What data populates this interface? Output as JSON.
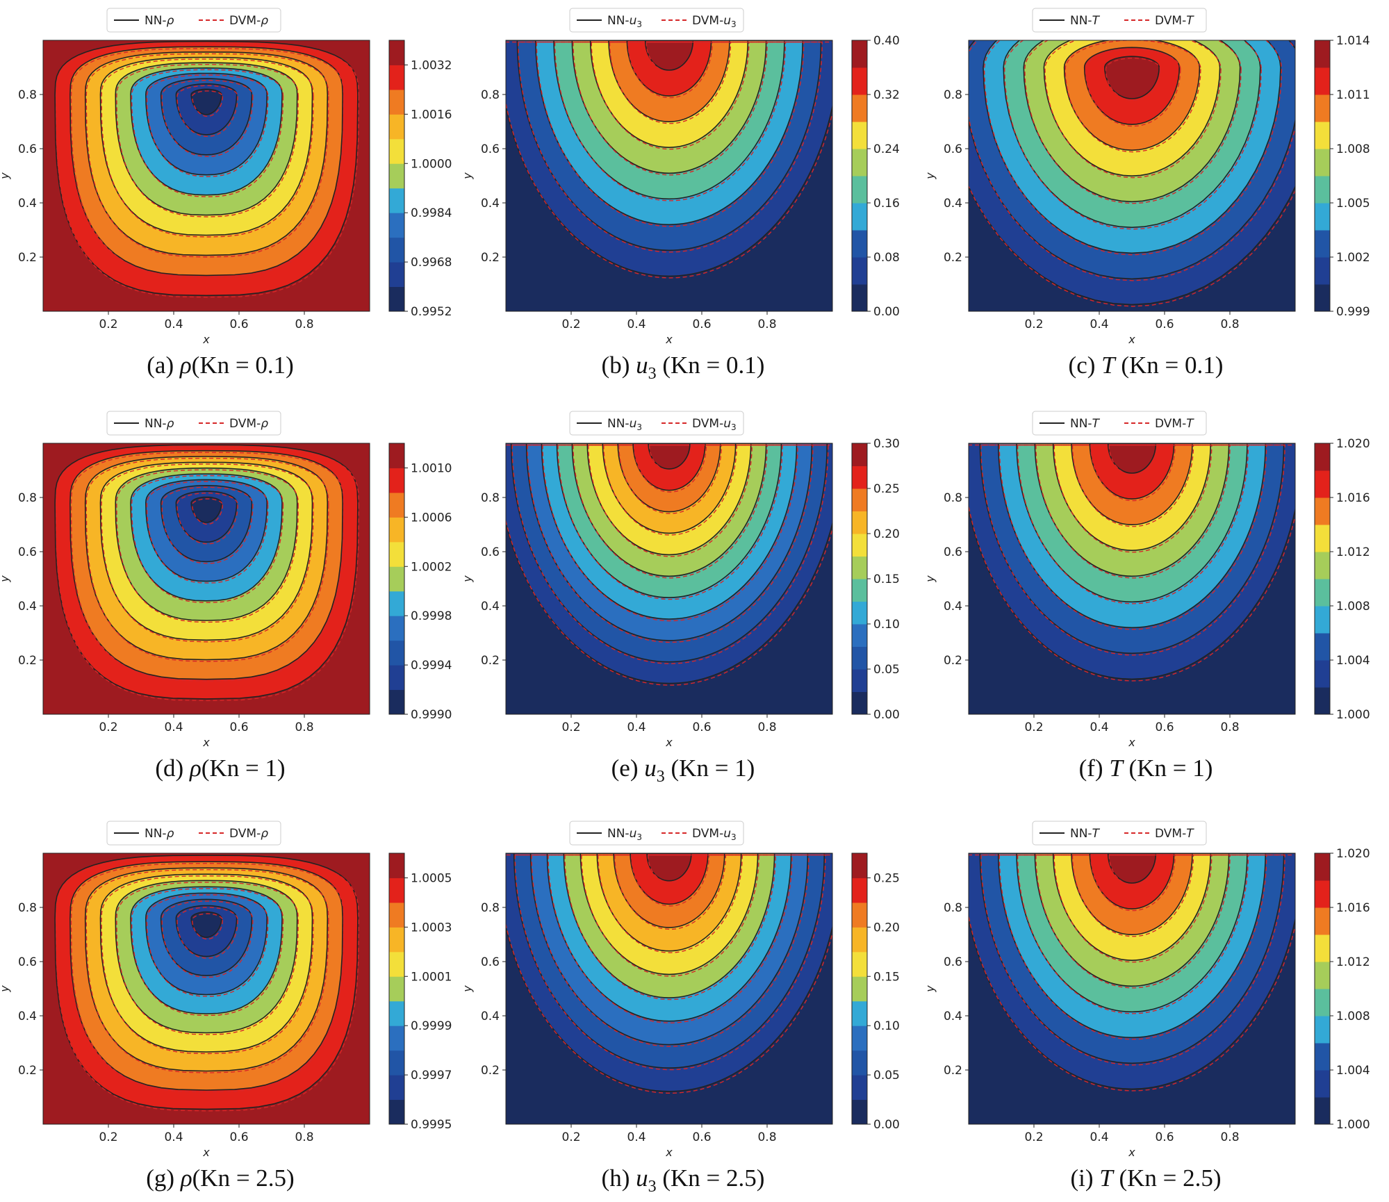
{
  "legend_labels": {
    "nn_prefix": "NN-",
    "dvm_prefix": "DVM-"
  },
  "colormap": [
    "#1a2c5e",
    "#203f93",
    "#2155a6",
    "#2b6fbf",
    "#33a9d6",
    "#5bbf9d",
    "#a6cd5a",
    "#f3df3a",
    "#f7b526",
    "#ef7b22",
    "#e3221b",
    "#9e1b20"
  ],
  "chart_data": [
    {
      "id": "a",
      "type": "contour",
      "variable": "ρ",
      "var_plain": "ρ",
      "var_sub": "",
      "kn": "0.1",
      "caption": "(a) ρ(Kn = 0.1)",
      "caption_prefix": "(a) ",
      "caption_suffix": "(Kn = 0.1)",
      "legend": [
        "NN-ρ",
        "DVM-ρ"
      ],
      "xlabel": "x",
      "ylabel": "y",
      "xticks": [
        "0.2",
        "0.4",
        "0.6",
        "0.8"
      ],
      "yticks": [
        "0.2",
        "0.4",
        "0.6",
        "0.8"
      ],
      "colorbar_min": 0.9952,
      "colorbar_max": 1.004,
      "colorbar_ticks": [
        "1.0032",
        "1.0016",
        "1.0000",
        "0.9984",
        "0.9968",
        "0.9952"
      ],
      "colorbar_levels": 11,
      "field_pattern": "vortex",
      "center_x": 0.5,
      "center_y": 0.8,
      "levels": 10
    },
    {
      "id": "b",
      "type": "contour",
      "variable": "u3",
      "var_plain": "u",
      "var_sub": "3",
      "kn": "0.1",
      "caption": "(b) u3 (Kn = 0.1)",
      "caption_prefix": "(b) ",
      "caption_suffix": " (Kn = 0.1)",
      "legend": [
        "NN-u3",
        "DVM-u3"
      ],
      "xlabel": "x",
      "ylabel": "y",
      "xticks": [
        "0.2",
        "0.4",
        "0.6",
        "0.8"
      ],
      "yticks": [
        "0.2",
        "0.4",
        "0.6",
        "0.8"
      ],
      "colorbar_min": 0.0,
      "colorbar_max": 0.4,
      "colorbar_ticks": [
        "0.40",
        "0.32",
        "0.24",
        "0.16",
        "0.08",
        "0.00"
      ],
      "colorbar_levels": 10,
      "field_pattern": "lid",
      "center_x": 0.5,
      "center_y": 1.0,
      "levels": 9
    },
    {
      "id": "c",
      "type": "contour",
      "variable": "T",
      "var_plain": "T",
      "var_sub": "",
      "kn": "0.1",
      "caption": "(c) T (Kn = 0.1)",
      "caption_prefix": "(c) ",
      "caption_suffix": " (Kn = 0.1)",
      "legend": [
        "NN-T",
        "DVM-T"
      ],
      "xlabel": "x",
      "ylabel": "y",
      "xticks": [
        "0.2",
        "0.4",
        "0.6",
        "0.8"
      ],
      "yticks": [
        "0.2",
        "0.4",
        "0.6",
        "0.8"
      ],
      "colorbar_min": 0.999,
      "colorbar_max": 1.014,
      "colorbar_ticks": [
        "1.014",
        "1.011",
        "1.008",
        "1.005",
        "1.002",
        "0.999"
      ],
      "colorbar_levels": 10,
      "field_pattern": "hot",
      "center_x": 0.5,
      "center_y": 0.9,
      "levels": 9
    },
    {
      "id": "d",
      "type": "contour",
      "variable": "ρ",
      "var_plain": "ρ",
      "var_sub": "",
      "kn": "1",
      "caption": "(d) ρ(Kn = 1)",
      "caption_prefix": "(d) ",
      "caption_suffix": "(Kn = 1)",
      "legend": [
        "NN-ρ",
        "DVM-ρ"
      ],
      "xlabel": "x",
      "ylabel": "y",
      "xticks": [
        "0.2",
        "0.4",
        "0.6",
        "0.8"
      ],
      "yticks": [
        "0.2",
        "0.4",
        "0.6",
        "0.8"
      ],
      "colorbar_min": 0.999,
      "colorbar_max": 1.0012,
      "colorbar_ticks": [
        "1.0010",
        "1.0006",
        "1.0002",
        "0.9998",
        "0.9994",
        "0.9990"
      ],
      "colorbar_levels": 11,
      "field_pattern": "vortex",
      "center_x": 0.5,
      "center_y": 0.78,
      "levels": 10
    },
    {
      "id": "e",
      "type": "contour",
      "variable": "u3",
      "var_plain": "u",
      "var_sub": "3",
      "kn": "1",
      "caption": "(e) u3 (Kn = 1)",
      "caption_prefix": "(e) ",
      "caption_suffix": " (Kn = 1)",
      "legend": [
        "NN-u3",
        "DVM-u3"
      ],
      "xlabel": "x",
      "ylabel": "y",
      "xticks": [
        "0.2",
        "0.4",
        "0.6",
        "0.8"
      ],
      "yticks": [
        "0.2",
        "0.4",
        "0.6",
        "0.8"
      ],
      "colorbar_min": 0.0,
      "colorbar_max": 0.3,
      "colorbar_ticks": [
        "0.30",
        "0.25",
        "0.20",
        "0.15",
        "0.10",
        "0.05",
        "0.00"
      ],
      "colorbar_levels": 12,
      "field_pattern": "lid",
      "center_x": 0.5,
      "center_y": 1.0,
      "levels": 11
    },
    {
      "id": "f",
      "type": "contour",
      "variable": "T",
      "var_plain": "T",
      "var_sub": "",
      "kn": "1",
      "caption": "(f) T (Kn = 1)",
      "caption_prefix": "(f) ",
      "caption_suffix": " (Kn = 1)",
      "legend": [
        "NN-T",
        "DVM-T"
      ],
      "xlabel": "x",
      "ylabel": "y",
      "xticks": [
        "0.2",
        "0.4",
        "0.6",
        "0.8"
      ],
      "yticks": [
        "0.2",
        "0.4",
        "0.6",
        "0.8"
      ],
      "colorbar_min": 1.0,
      "colorbar_max": 1.02,
      "colorbar_ticks": [
        "1.020",
        "1.016",
        "1.012",
        "1.008",
        "1.004",
        "1.000"
      ],
      "colorbar_levels": 10,
      "field_pattern": "lid",
      "center_x": 0.5,
      "center_y": 1.0,
      "levels": 9
    },
    {
      "id": "g",
      "type": "contour",
      "variable": "ρ",
      "var_plain": "ρ",
      "var_sub": "",
      "kn": "2.5",
      "caption": "(g) ρ(Kn = 2.5)",
      "caption_prefix": "(g) ",
      "caption_suffix": "(Kn = 2.5)",
      "legend": [
        "NN-ρ",
        "DVM-ρ"
      ],
      "xlabel": "x",
      "ylabel": "y",
      "xticks": [
        "0.2",
        "0.4",
        "0.6",
        "0.8"
      ],
      "yticks": [
        "0.2",
        "0.4",
        "0.6",
        "0.8"
      ],
      "colorbar_min": 0.9995,
      "colorbar_max": 1.0006,
      "colorbar_ticks": [
        "1.0005",
        "1.0003",
        "1.0001",
        "0.9999",
        "0.9997",
        "0.9995"
      ],
      "colorbar_levels": 11,
      "field_pattern": "vortex",
      "center_x": 0.5,
      "center_y": 0.76,
      "levels": 10
    },
    {
      "id": "h",
      "type": "contour",
      "variable": "u3",
      "var_plain": "u",
      "var_sub": "3",
      "kn": "2.5",
      "caption": "(h) u3 (Kn = 2.5)",
      "caption_prefix": "(h) ",
      "caption_suffix": " (Kn = 2.5)",
      "legend": [
        "NN-u3",
        "DVM-u3"
      ],
      "xlabel": "x",
      "ylabel": "y",
      "xticks": [
        "0.2",
        "0.4",
        "0.6",
        "0.8"
      ],
      "yticks": [
        "0.2",
        "0.4",
        "0.6",
        "0.8"
      ],
      "colorbar_min": 0.0,
      "colorbar_max": 0.275,
      "colorbar_ticks": [
        "0.25",
        "0.20",
        "0.15",
        "0.10",
        "0.05",
        "0.00"
      ],
      "colorbar_levels": 11,
      "field_pattern": "lid",
      "center_x": 0.5,
      "center_y": 1.0,
      "levels": 10
    },
    {
      "id": "i",
      "type": "contour",
      "variable": "T",
      "var_plain": "T",
      "var_sub": "",
      "kn": "2.5",
      "caption": "(i) T (Kn = 2.5)",
      "caption_prefix": "(i) ",
      "caption_suffix": " (Kn = 2.5)",
      "legend": [
        "NN-T",
        "DVM-T"
      ],
      "xlabel": "x",
      "ylabel": "y",
      "xticks": [
        "0.2",
        "0.4",
        "0.6",
        "0.8"
      ],
      "yticks": [
        "0.2",
        "0.4",
        "0.6",
        "0.8"
      ],
      "colorbar_min": 1.0,
      "colorbar_max": 1.02,
      "colorbar_ticks": [
        "1.020",
        "1.016",
        "1.012",
        "1.008",
        "1.004",
        "1.000"
      ],
      "colorbar_levels": 10,
      "field_pattern": "lid",
      "center_x": 0.5,
      "center_y": 1.0,
      "levels": 9
    }
  ]
}
